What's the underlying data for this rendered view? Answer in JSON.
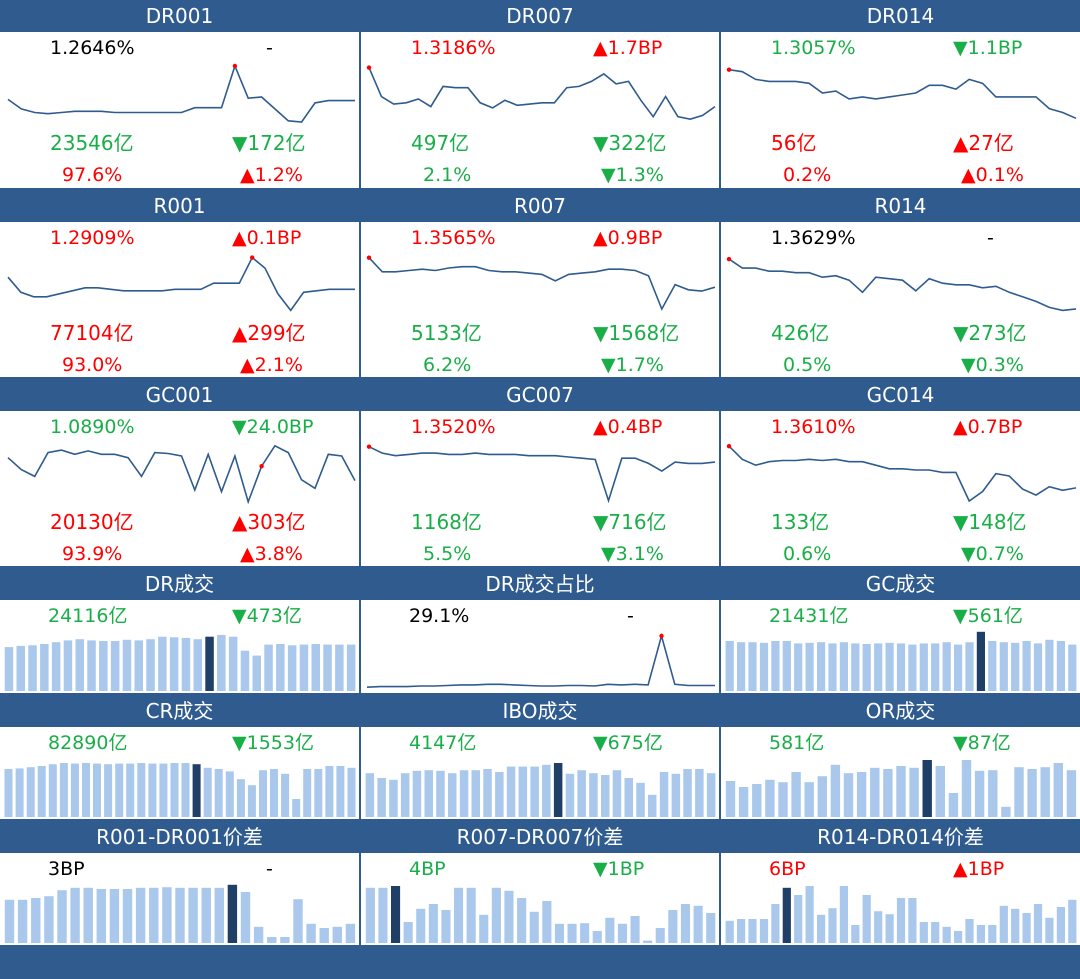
{
  "panels": [
    {
      "title": "DR001",
      "rate": "1.2646%",
      "rate_color": "black",
      "rate_change": "-",
      "rate_change_color": "black",
      "volume": "23546亿",
      "volume_color": "green",
      "volume_change": "▼172亿",
      "volume_change_color": "green",
      "share": "97.6%",
      "share_color": "red",
      "share_change": "▲1.2%",
      "share_change_color": "red",
      "chart_data": {
        "type": "line",
        "values": [
          1.22,
          1.14,
          1.11,
          1.1,
          1.11,
          1.12,
          1.12,
          1.12,
          1.11,
          1.11,
          1.11,
          1.11,
          1.11,
          1.11,
          1.15,
          1.15,
          1.15,
          1.5,
          1.23,
          1.24,
          1.14,
          1.04,
          1.03,
          1.19,
          1.21,
          1.21,
          1.21
        ],
        "ylim": [
          0.98,
          1.55
        ],
        "highlight": 17
      }
    },
    {
      "title": "DR007",
      "rate": "1.3186%",
      "rate_color": "red",
      "rate_change": "▲1.7BP",
      "rate_change_color": "red",
      "volume": "497亿",
      "volume_color": "green",
      "volume_change": "▼322亿",
      "volume_change_color": "green",
      "share": "2.1%",
      "share_color": "green",
      "share_change": "▼1.3%",
      "share_change_color": "green",
      "chart_data": {
        "type": "line",
        "values": [
          1.6,
          1.37,
          1.31,
          1.32,
          1.35,
          1.29,
          1.45,
          1.44,
          1.44,
          1.32,
          1.28,
          1.34,
          1.3,
          1.31,
          1.32,
          1.32,
          1.44,
          1.45,
          1.49,
          1.55,
          1.47,
          1.49,
          1.34,
          1.21,
          1.37,
          1.21,
          1.19,
          1.22,
          1.29
        ],
        "ylim": [
          1.12,
          1.66
        ],
        "highlight": 0
      }
    },
    {
      "title": "DR014",
      "rate": "1.3057%",
      "rate_color": "green",
      "rate_change": "▼1.1BP",
      "rate_change_color": "green",
      "volume": "56亿",
      "volume_color": "red",
      "volume_change": "▲27亿",
      "volume_change_color": "red",
      "share": "0.2%",
      "share_color": "red",
      "share_change": "▲0.1%",
      "share_change_color": "red",
      "chart_data": {
        "type": "line",
        "values": [
          1.6,
          1.59,
          1.55,
          1.54,
          1.54,
          1.54,
          1.53,
          1.48,
          1.49,
          1.45,
          1.46,
          1.45,
          1.46,
          1.47,
          1.48,
          1.52,
          1.52,
          1.5,
          1.55,
          1.53,
          1.46,
          1.46,
          1.46,
          1.46,
          1.4,
          1.38,
          1.35
        ],
        "ylim": [
          1.3,
          1.65
        ],
        "highlight": 0
      }
    },
    {
      "title": "R001",
      "rate": "1.2909%",
      "rate_color": "red",
      "rate_change": "▲0.1BP",
      "rate_change_color": "red",
      "volume": "77104亿",
      "volume_color": "red",
      "volume_change": "▲299亿",
      "volume_change_color": "red",
      "share": "93.0%",
      "share_color": "red",
      "share_change": "▲2.1%",
      "share_change_color": "red",
      "chart_data": {
        "type": "line",
        "values": [
          1.29,
          1.19,
          1.16,
          1.16,
          1.18,
          1.2,
          1.22,
          1.22,
          1.21,
          1.2,
          1.2,
          1.2,
          1.2,
          1.21,
          1.21,
          1.21,
          1.25,
          1.25,
          1.25,
          1.42,
          1.35,
          1.18,
          1.07,
          1.19,
          1.2,
          1.21,
          1.21,
          1.21
        ],
        "ylim": [
          1.02,
          1.47
        ],
        "highlight": 19
      }
    },
    {
      "title": "R007",
      "rate": "1.3565%",
      "rate_color": "red",
      "rate_change": "▲0.9BP",
      "rate_change_color": "red",
      "volume": "5133亿",
      "volume_color": "green",
      "volume_change": "▼1568亿",
      "volume_change_color": "green",
      "share": "6.2%",
      "share_color": "green",
      "share_change": "▼1.7%",
      "share_change_color": "green",
      "chart_data": {
        "type": "line",
        "values": [
          1.62,
          1.51,
          1.51,
          1.52,
          1.53,
          1.52,
          1.54,
          1.55,
          1.55,
          1.52,
          1.51,
          1.51,
          1.5,
          1.49,
          1.44,
          1.49,
          1.5,
          1.51,
          1.53,
          1.53,
          1.52,
          1.48,
          1.22,
          1.41,
          1.37,
          1.36,
          1.39
        ],
        "ylim": [
          1.15,
          1.68
        ],
        "highlight": 0
      }
    },
    {
      "title": "R014",
      "rate": "1.3629%",
      "rate_color": "black",
      "rate_change": "-",
      "rate_change_color": "black",
      "volume": "426亿",
      "volume_color": "green",
      "volume_change": "▼273亿",
      "volume_change_color": "green",
      "share": "0.5%",
      "share_color": "green",
      "share_change": "▼0.3%",
      "share_change_color": "green",
      "chart_data": {
        "type": "line",
        "values": [
          1.64,
          1.58,
          1.58,
          1.56,
          1.56,
          1.55,
          1.55,
          1.52,
          1.53,
          1.5,
          1.42,
          1.52,
          1.51,
          1.5,
          1.43,
          1.51,
          1.48,
          1.47,
          1.47,
          1.45,
          1.46,
          1.42,
          1.39,
          1.36,
          1.32,
          1.3,
          1.31
        ],
        "ylim": [
          1.25,
          1.7
        ],
        "highlight": 0
      }
    },
    {
      "title": "GC001",
      "rate": "1.0890%",
      "rate_color": "green",
      "rate_change": "▼24.0BP",
      "rate_change_color": "green",
      "volume": "20130亿",
      "volume_color": "red",
      "volume_change": "▲303亿",
      "volume_change_color": "red",
      "share": "93.9%",
      "share_color": "red",
      "share_change": "▲3.8%",
      "share_change_color": "red",
      "chart_data": {
        "type": "line",
        "values": [
          1.36,
          1.22,
          1.14,
          1.42,
          1.45,
          1.4,
          1.44,
          1.4,
          1.4,
          1.36,
          1.14,
          1.42,
          1.41,
          1.38,
          0.98,
          1.4,
          0.96,
          1.38,
          0.84,
          1.26,
          1.5,
          1.42,
          1.1,
          1.0,
          1.4,
          1.38,
          1.09
        ],
        "ylim": [
          0.78,
          1.58
        ],
        "highlight": 19
      }
    },
    {
      "title": "GC007",
      "rate": "1.3520%",
      "rate_color": "red",
      "rate_change": "▲0.4BP",
      "rate_change_color": "red",
      "volume": "1168亿",
      "volume_color": "green",
      "volume_change": "▼716亿",
      "volume_change_color": "green",
      "share": "5.5%",
      "share_color": "green",
      "share_change": "▼3.1%",
      "share_change_color": "green",
      "chart_data": {
        "type": "line",
        "values": [
          1.62,
          1.57,
          1.55,
          1.56,
          1.57,
          1.57,
          1.56,
          1.56,
          1.57,
          1.56,
          1.56,
          1.56,
          1.55,
          1.55,
          1.55,
          1.54,
          1.53,
          1.52,
          1.2,
          1.53,
          1.53,
          1.49,
          1.43,
          1.5,
          1.49,
          1.49,
          1.5
        ],
        "ylim": [
          1.15,
          1.68
        ],
        "highlight": 0
      }
    },
    {
      "title": "GC014",
      "rate": "1.3610%",
      "rate_color": "red",
      "rate_change": "▲0.7BP",
      "rate_change_color": "red",
      "volume": "133亿",
      "volume_color": "green",
      "volume_change": "▼148亿",
      "volume_change_color": "green",
      "share": "0.6%",
      "share_color": "green",
      "share_change": "▼0.7%",
      "share_change_color": "green",
      "chart_data": {
        "type": "line",
        "values": [
          1.66,
          1.55,
          1.5,
          1.53,
          1.54,
          1.54,
          1.55,
          1.54,
          1.55,
          1.53,
          1.53,
          1.5,
          1.47,
          1.47,
          1.46,
          1.46,
          1.44,
          1.44,
          1.2,
          1.28,
          1.43,
          1.41,
          1.3,
          1.25,
          1.32,
          1.29,
          1.31
        ],
        "ylim": [
          1.15,
          1.72
        ],
        "highlight": 0
      }
    },
    {
      "title": "DR成交",
      "rate": "24116亿",
      "rate_color": "green",
      "rate_change": "▼473亿",
      "rate_change_color": "green",
      "chart_data": {
        "type": "bar",
        "values": [
          0.72,
          0.74,
          0.75,
          0.77,
          0.8,
          0.83,
          0.85,
          0.83,
          0.82,
          0.82,
          0.84,
          0.83,
          0.85,
          0.89,
          0.88,
          0.87,
          0.85,
          0.89,
          0.92,
          0.89,
          0.66,
          0.58,
          0.76,
          0.77,
          0.75,
          0.76,
          0.77,
          0.76,
          0.76,
          0.76
        ],
        "ylim": [
          0,
          1
        ],
        "highlight": 17
      }
    },
    {
      "title": "DR成交占比",
      "rate": "29.1%",
      "rate_color": "black",
      "rate_change": "-",
      "rate_change_color": "black",
      "chart_data": {
        "type": "line",
        "values": [
          0.03,
          0.04,
          0.04,
          0.04,
          0.05,
          0.05,
          0.06,
          0.07,
          0.07,
          0.08,
          0.08,
          0.07,
          0.06,
          0.05,
          0.05,
          0.06,
          0.06,
          0.05,
          0.08,
          0.07,
          0.08,
          0.07,
          0.9,
          0.08,
          0.06,
          0.06,
          0.06
        ],
        "ylim": [
          0,
          1
        ],
        "highlight": 22
      }
    },
    {
      "title": "GC成交",
      "rate": "21431亿",
      "rate_color": "green",
      "rate_change": "▼561亿",
      "rate_change_color": "green",
      "chart_data": {
        "type": "bar",
        "values": [
          0.82,
          0.8,
          0.8,
          0.79,
          0.82,
          0.82,
          0.78,
          0.79,
          0.8,
          0.78,
          0.8,
          0.78,
          0.77,
          0.78,
          0.79,
          0.78,
          0.76,
          0.78,
          0.78,
          0.8,
          0.76,
          0.8,
          0.97,
          0.82,
          0.8,
          0.79,
          0.82,
          0.78,
          0.84,
          0.82,
          0.76
        ],
        "ylim": [
          0,
          1
        ],
        "highlight": 22
      }
    },
    {
      "title": "CR成交",
      "rate": "82890亿",
      "rate_color": "green",
      "rate_change": "▼1553亿",
      "rate_change_color": "green",
      "chart_data": {
        "type": "bar",
        "values": [
          0.8,
          0.81,
          0.83,
          0.85,
          0.88,
          0.9,
          0.89,
          0.9,
          0.89,
          0.88,
          0.89,
          0.89,
          0.9,
          0.89,
          0.89,
          0.9,
          0.9,
          0.88,
          0.82,
          0.8,
          0.76,
          0.63,
          0.53,
          0.78,
          0.8,
          0.72,
          0.3,
          0.8,
          0.8,
          0.85,
          0.85,
          0.82
        ],
        "ylim": [
          0,
          1
        ],
        "highlight": 17
      }
    },
    {
      "title": "IBO成交",
      "rate": "4147亿",
      "rate_color": "green",
      "rate_change": "▼675亿",
      "rate_change_color": "green",
      "chart_data": {
        "type": "bar",
        "values": [
          0.73,
          0.65,
          0.62,
          0.73,
          0.77,
          0.78,
          0.77,
          0.73,
          0.78,
          0.78,
          0.8,
          0.75,
          0.84,
          0.84,
          0.84,
          0.87,
          0.9,
          0.72,
          0.78,
          0.73,
          0.7,
          0.78,
          0.65,
          0.57,
          0.37,
          0.75,
          0.72,
          0.8,
          0.8,
          0.73
        ],
        "ylim": [
          0,
          1
        ],
        "highlight": 16
      }
    },
    {
      "title": "OR成交",
      "rate": "581亿",
      "rate_color": "green",
      "rate_change": "▼87亿",
      "rate_change_color": "green",
      "chart_data": {
        "type": "bar",
        "values": [
          0.6,
          0.5,
          0.55,
          0.62,
          0.58,
          0.75,
          0.58,
          0.68,
          0.87,
          0.73,
          0.75,
          0.82,
          0.8,
          0.85,
          0.82,
          0.95,
          0.85,
          0.4,
          0.95,
          0.77,
          0.78,
          0.17,
          0.83,
          0.8,
          0.83,
          0.9,
          0.78
        ],
        "ylim": [
          0,
          1
        ],
        "highlight": 15
      }
    },
    {
      "title": "R001-DR001价差",
      "rate": "3BP",
      "rate_color": "black",
      "rate_change": "-",
      "rate_change_color": "black",
      "chart_data": {
        "type": "bar",
        "values": [
          0.72,
          0.72,
          0.75,
          0.78,
          0.88,
          0.92,
          0.92,
          0.9,
          0.9,
          0.9,
          0.92,
          0.92,
          0.93,
          0.92,
          0.92,
          0.92,
          0.92,
          0.97,
          0.85,
          0.27,
          0.1,
          0.1,
          0.73,
          0.32,
          0.25,
          0.27,
          0.32
        ],
        "ylim": [
          0,
          1
        ],
        "highlight": 17
      }
    },
    {
      "title": "R007-DR007价差",
      "rate": "4BP",
      "rate_color": "green",
      "rate_change": "▼1BP",
      "rate_change_color": "green",
      "chart_data": {
        "type": "bar",
        "values": [
          0.92,
          0.92,
          0.95,
          0.35,
          0.57,
          0.65,
          0.55,
          0.92,
          0.92,
          0.47,
          0.92,
          0.87,
          0.75,
          0.52,
          0.7,
          0.32,
          0.32,
          0.33,
          0.2,
          0.42,
          0.32,
          0.45,
          0.04,
          0.25,
          0.55,
          0.65,
          0.62,
          0.5
        ],
        "ylim": [
          0,
          1
        ],
        "highlight": 2
      }
    },
    {
      "title": "R014-DR014价差",
      "rate": "6BP",
      "rate_color": "red",
      "rate_change": "▲1BP",
      "rate_change_color": "red",
      "chart_data": {
        "type": "bar",
        "values": [
          0.37,
          0.4,
          0.4,
          0.4,
          0.65,
          0.92,
          0.8,
          0.95,
          0.47,
          0.58,
          0.95,
          0.3,
          0.8,
          0.53,
          0.48,
          0.75,
          0.75,
          0.35,
          0.35,
          0.27,
          0.2,
          0.4,
          0.3,
          0.3,
          0.62,
          0.57,
          0.5,
          0.65,
          0.42,
          0.6,
          0.72
        ],
        "ylim": [
          0,
          1
        ],
        "highlight": 5
      }
    }
  ]
}
